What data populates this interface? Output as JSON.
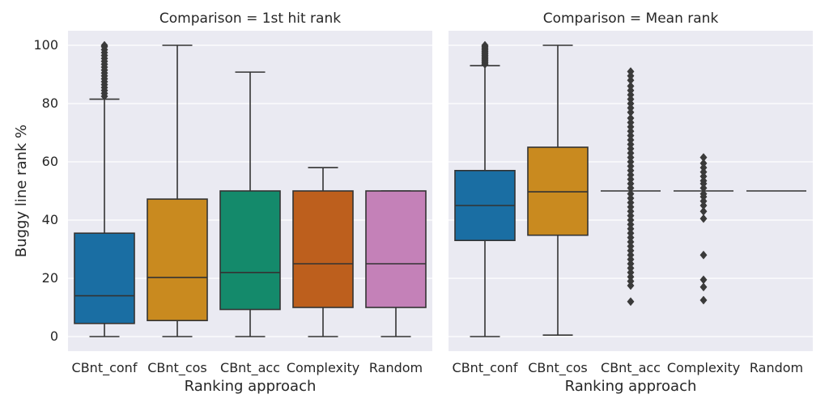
{
  "chart_data": {
    "type": "box",
    "ylabel": "Buggy line rank %",
    "xlabel": "Ranking approach",
    "ylim": [
      -5,
      105
    ],
    "yticks": [
      0,
      20,
      40,
      60,
      80,
      100
    ],
    "grid": true,
    "categories": [
      "CBnt_conf",
      "CBnt_cos",
      "CBnt_acc",
      "Complexity",
      "Random"
    ],
    "colors": {
      "CBnt_conf": "#1a6ea3",
      "CBnt_cos": "#c98a1f",
      "CBnt_acc": "#148a6b",
      "Complexity": "#bd5f1d",
      "Random": "#c481b8",
      "background": "#eaeaf2",
      "line": "#333333"
    },
    "panels": [
      {
        "title": "Comparison = 1st hit rank",
        "boxes": [
          {
            "category": "CBnt_conf",
            "whislo": 0,
            "q1": 4.5,
            "median": 14,
            "q3": 35.5,
            "whishi": 81.5,
            "fliers": [
              82.5,
              83.5,
              84.5,
              85.5,
              86.5,
              87.5,
              88.5,
              89.5,
              90.5,
              91.5,
              92.5,
              93.5,
              94.5,
              95.5,
              96.5,
              97.5,
              98.5,
              99.5,
              100
            ]
          },
          {
            "category": "CBnt_cos",
            "whislo": 0,
            "q1": 5.5,
            "median": 20.3,
            "q3": 47.2,
            "whishi": 100,
            "fliers": []
          },
          {
            "category": "CBnt_acc",
            "whislo": 0,
            "q1": 9.3,
            "median": 22,
            "q3": 50,
            "whishi": 90.8,
            "fliers": []
          },
          {
            "category": "Complexity",
            "whislo": 0,
            "q1": 10,
            "median": 25,
            "q3": 50,
            "whishi": 58,
            "fliers": []
          },
          {
            "category": "Random",
            "whislo": 0,
            "q1": 10,
            "median": 25,
            "q3": 50,
            "whishi": 50,
            "fliers": []
          }
        ]
      },
      {
        "title": "Comparison = Mean rank",
        "boxes": [
          {
            "category": "CBnt_conf",
            "whislo": 0,
            "q1": 33,
            "median": 45,
            "q3": 57,
            "whishi": 93,
            "fliers": [
              93.5,
              94,
              94.5,
              95,
              95.5,
              96,
              96.5,
              97,
              97.5,
              98,
              98.5,
              99,
              99.5,
              100
            ]
          },
          {
            "category": "CBnt_cos",
            "whislo": 0.5,
            "q1": 34.8,
            "median": 49.7,
            "q3": 65,
            "whishi": 100,
            "fliers": []
          },
          {
            "category": "CBnt_acc",
            "whislo": 50,
            "q1": 50,
            "median": 50,
            "q3": 50,
            "whishi": 50,
            "fliers": [
              91,
              89.5,
              88,
              86,
              84.5,
              83,
              81.5,
              80,
              78.5,
              77,
              75,
              73.5,
              72,
              70.5,
              69,
              67.5,
              66,
              64.5,
              63,
              61.5,
              60,
              58.5,
              57,
              55.5,
              54,
              52.5,
              51,
              49,
              47.5,
              46,
              44.5,
              43,
              41.5,
              40,
              38.5,
              37,
              35.5,
              34,
              32.5,
              31,
              29.5,
              28,
              26.5,
              25,
              23.5,
              22,
              20.5,
              19,
              17.5,
              12
            ]
          },
          {
            "category": "Complexity",
            "whislo": 50,
            "q1": 50,
            "median": 50,
            "q3": 50,
            "whishi": 50,
            "fliers": [
              61.5,
              59.5,
              58,
              56.5,
              55,
              53.5,
              52.5,
              51,
              49,
              48,
              46.5,
              45,
              43,
              40.5,
              28,
              19.5,
              17,
              12.5
            ]
          },
          {
            "category": "Random",
            "whislo": 50,
            "q1": 50,
            "median": 50,
            "q3": 50,
            "whishi": 50,
            "fliers": []
          }
        ]
      }
    ]
  }
}
